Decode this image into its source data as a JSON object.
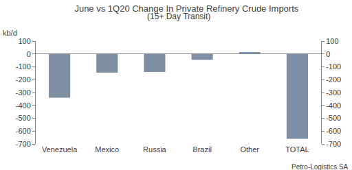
{
  "chart_data": {
    "type": "bar",
    "title": "June vs 1Q20 Change In Private Refinery Crude Imports",
    "subtitle": "(15+ Day Transit)",
    "ylabel": "kb/d",
    "annotations": [
      "Petro-Logistics SA"
    ],
    "categories": [
      "Venezuela",
      "Mexico",
      "Russia",
      "Brazil",
      "Other",
      "TOTAL"
    ],
    "values": [
      -340,
      -145,
      -140,
      -45,
      15,
      -660
    ],
    "color": "#7d8fa3",
    "ylim": [
      -700,
      100
    ],
    "yticks": [
      -700,
      -600,
      -500,
      -400,
      -300,
      -200,
      -100,
      0,
      100
    ],
    "y2lim": [
      -700,
      100
    ],
    "y2ticks": [
      -700,
      -600,
      -500,
      -400,
      -300,
      -200,
      -100,
      0,
      100
    ],
    "grid": false
  }
}
